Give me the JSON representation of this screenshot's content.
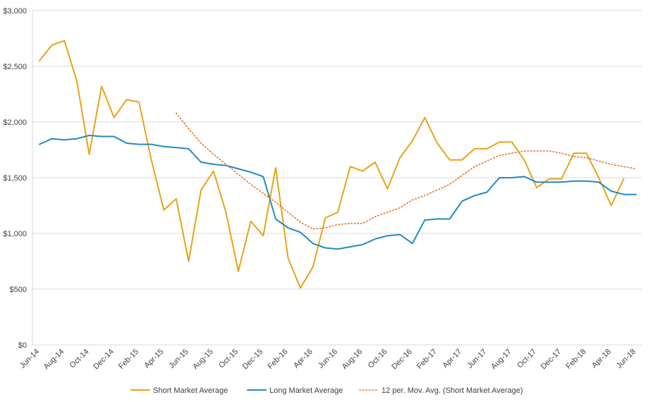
{
  "chart_data": {
    "type": "line",
    "title": "",
    "xlabel": "",
    "ylabel": "",
    "ylim": [
      0,
      3000
    ],
    "y_ticks": [
      0,
      500,
      1000,
      1500,
      2000,
      2500,
      3000
    ],
    "y_tick_labels": [
      "$0",
      "$500",
      "$1,000",
      "$1,500",
      "$2,000",
      "$2,500",
      "$3,000"
    ],
    "grid": true,
    "legend_position": "bottom",
    "x": [
      "Jun-14",
      "Jul-14",
      "Aug-14",
      "Sep-14",
      "Oct-14",
      "Nov-14",
      "Dec-14",
      "Jan-15",
      "Feb-15",
      "Mar-15",
      "Apr-15",
      "May-15",
      "Jun-15",
      "Jul-15",
      "Aug-15",
      "Sep-15",
      "Oct-15",
      "Nov-15",
      "Dec-15",
      "Jan-16",
      "Feb-16",
      "Mar-16",
      "Apr-16",
      "May-16",
      "Jun-16",
      "Jul-16",
      "Aug-16",
      "Sep-16",
      "Oct-16",
      "Nov-16",
      "Dec-16",
      "Jan-17",
      "Feb-17",
      "Mar-17",
      "Apr-17",
      "May-17",
      "Jun-17",
      "Jul-17",
      "Aug-17",
      "Sep-17",
      "Oct-17",
      "Nov-17",
      "Dec-17",
      "Jan-18",
      "Feb-18",
      "Mar-18",
      "Apr-18",
      "May-18",
      "Jun-18"
    ],
    "x_tick_labels": [
      "Jun-14",
      "Aug-14",
      "Oct-14",
      "Dec-14",
      "Feb-15",
      "Apr-15",
      "Jun-15",
      "Aug-15",
      "Oct-15",
      "Dec-15",
      "Feb-16",
      "Apr-16",
      "Jun-16",
      "Aug-16",
      "Oct-16",
      "Dec-16",
      "Feb-17",
      "Apr-17",
      "Jun-17",
      "Aug-17",
      "Oct-17",
      "Dec-17",
      "Feb-18",
      "Apr-18",
      "Jun-18"
    ],
    "series": [
      {
        "name": "Short Market Average",
        "color": "#E8A317",
        "style": "solid",
        "values": [
          2550,
          2690,
          2730,
          2370,
          1710,
          2320,
          2040,
          2200,
          2180,
          1660,
          1210,
          1310,
          750,
          1390,
          1560,
          1190,
          660,
          1110,
          980,
          1590,
          780,
          510,
          700,
          1140,
          1190,
          1600,
          1560,
          1640,
          1400,
          1680,
          1830,
          2040,
          1810,
          1660,
          1660,
          1760,
          1760,
          1820,
          1820,
          1660,
          1410,
          1490,
          1490,
          1720,
          1720,
          1500,
          1250,
          1490,
          null
        ]
      },
      {
        "name": "Long Market Average",
        "color": "#1F8CC2",
        "style": "solid",
        "values": [
          1800,
          1850,
          1840,
          1850,
          1880,
          1870,
          1870,
          1810,
          1800,
          1800,
          1780,
          1770,
          1760,
          1640,
          1620,
          1610,
          1580,
          1550,
          1510,
          1130,
          1050,
          1010,
          910,
          870,
          860,
          880,
          900,
          950,
          980,
          990,
          910,
          1120,
          1130,
          1130,
          1290,
          1340,
          1370,
          1500,
          1500,
          1510,
          1460,
          1460,
          1460,
          1470,
          1470,
          1460,
          1380,
          1350,
          1350
        ]
      },
      {
        "name": "12 per. Mov. Avg.  (Short Market Average)",
        "color": "#E8742A",
        "style": "dotted",
        "values": [
          null,
          null,
          null,
          null,
          null,
          null,
          null,
          null,
          null,
          null,
          null,
          2080,
          1940,
          1810,
          1710,
          1620,
          1530,
          1440,
          1360,
          1280,
          1190,
          1100,
          1040,
          1050,
          1080,
          1090,
          1090,
          1150,
          1190,
          1230,
          1300,
          1340,
          1390,
          1440,
          1520,
          1600,
          1650,
          1700,
          1720,
          1740,
          1740,
          1740,
          1720,
          1690,
          1680,
          1650,
          1620,
          1600,
          1580
        ]
      }
    ]
  }
}
